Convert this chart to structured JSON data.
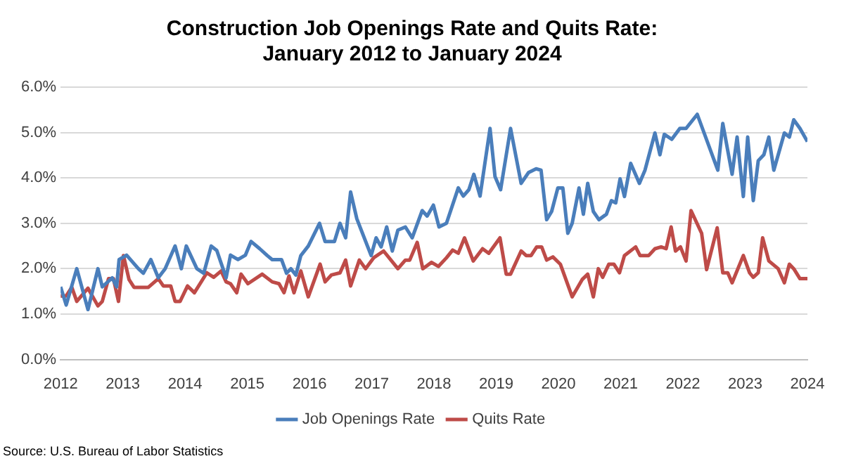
{
  "chart_data": {
    "type": "line",
    "title": "Construction Job Openings Rate and Quits Rate:\nJanuary 2012 to January 2024",
    "xlim": [
      2012,
      2024
    ],
    "xticks": [
      2012,
      2013,
      2014,
      2015,
      2016,
      2017,
      2018,
      2019,
      2020,
      2021,
      2022,
      2023,
      2024
    ],
    "ylim": [
      0,
      6
    ],
    "yticks": [
      {
        "value": 0,
        "label": "0.0%"
      },
      {
        "value": 1,
        "label": "1.0%"
      },
      {
        "value": 2,
        "label": "2.0%"
      },
      {
        "value": 3,
        "label": "3.0%"
      },
      {
        "value": 4,
        "label": "4.0%"
      },
      {
        "value": 5,
        "label": "5.0%"
      },
      {
        "value": 6,
        "label": "6.0%"
      }
    ],
    "grid": "y",
    "legend": "bottom",
    "marker": "none",
    "line_style": "solid",
    "annotations": [
      "Source: U.S. Bureau of Labor Statistics"
    ],
    "series": [
      {
        "name": "Job Openings Rate",
        "color": "#4a7ebb",
        "x": [
          2012.0,
          2012.09,
          2012.26,
          2012.44,
          2012.6,
          2012.67,
          2012.83,
          2012.9,
          2012.94,
          2013.06,
          2013.25,
          2013.33,
          2013.45,
          2013.57,
          2013.68,
          2013.84,
          2013.94,
          2014.02,
          2014.19,
          2014.3,
          2014.42,
          2014.51,
          2014.66,
          2014.73,
          2014.85,
          2014.97,
          2015.06,
          2015.2,
          2015.32,
          2015.4,
          2015.55,
          2015.63,
          2015.7,
          2015.78,
          2015.86,
          2015.98,
          2016.16,
          2016.25,
          2016.4,
          2016.49,
          2016.58,
          2016.66,
          2016.76,
          2016.99,
          2017.07,
          2017.15,
          2017.24,
          2017.33,
          2017.42,
          2017.54,
          2017.65,
          2017.81,
          2017.89,
          2017.99,
          2018.08,
          2018.2,
          2018.39,
          2018.47,
          2018.56,
          2018.64,
          2018.74,
          2018.9,
          2018.98,
          2019.07,
          2019.23,
          2019.4,
          2019.52,
          2019.64,
          2019.72,
          2019.81,
          2019.89,
          2019.99,
          2020.07,
          2020.15,
          2020.22,
          2020.33,
          2020.4,
          2020.47,
          2020.56,
          2020.65,
          2020.77,
          2020.85,
          2020.92,
          2020.99,
          2021.06,
          2021.16,
          2021.3,
          2021.39,
          2021.55,
          2021.63,
          2021.7,
          2021.82,
          2021.95,
          2022.05,
          2022.23,
          2022.56,
          2022.64,
          2022.79,
          2022.87,
          2022.97,
          2023.04,
          2023.13,
          2023.21,
          2023.3,
          2023.38,
          2023.46,
          2023.63,
          2023.71,
          2023.78,
          2023.88,
          2024.0
        ],
        "values": [
          1.6,
          1.2,
          2.0,
          1.1,
          2.0,
          1.6,
          1.8,
          1.6,
          2.2,
          2.3,
          2.0,
          1.9,
          2.2,
          1.8,
          2.0,
          2.5,
          2.0,
          2.5,
          2.0,
          1.9,
          2.5,
          2.4,
          1.8,
          2.3,
          2.2,
          2.3,
          2.6,
          2.44,
          2.29,
          2.2,
          2.2,
          1.9,
          2.0,
          1.86,
          2.29,
          2.5,
          3.0,
          2.6,
          2.6,
          3.0,
          2.68,
          3.69,
          3.1,
          2.29,
          2.68,
          2.48,
          2.92,
          2.39,
          2.85,
          2.92,
          2.68,
          3.28,
          3.16,
          3.4,
          2.92,
          3.0,
          3.78,
          3.6,
          3.74,
          4.08,
          3.6,
          5.09,
          4.03,
          3.74,
          5.09,
          3.88,
          4.12,
          4.2,
          4.17,
          3.08,
          3.26,
          3.78,
          3.78,
          2.78,
          3.0,
          3.78,
          3.2,
          3.88,
          3.26,
          3.08,
          3.2,
          3.5,
          3.45,
          3.98,
          3.59,
          4.32,
          3.88,
          4.17,
          4.99,
          4.51,
          4.96,
          4.85,
          5.09,
          5.09,
          5.4,
          4.17,
          5.2,
          4.08,
          4.9,
          3.59,
          4.9,
          3.5,
          4.38,
          4.51,
          4.9,
          4.17,
          4.99,
          4.9,
          5.28,
          5.09,
          4.8
        ]
      },
      {
        "name": "Quits Rate",
        "color": "#be4b48",
        "x": [
          2012.0,
          2012.09,
          2012.18,
          2012.26,
          2012.44,
          2012.6,
          2012.67,
          2012.77,
          2012.85,
          2012.93,
          2013.01,
          2013.1,
          2013.18,
          2013.41,
          2013.57,
          2013.65,
          2013.77,
          2013.84,
          2013.92,
          2014.04,
          2014.15,
          2014.35,
          2014.46,
          2014.58,
          2014.66,
          2014.73,
          2014.83,
          2014.9,
          2015.01,
          2015.24,
          2015.4,
          2015.51,
          2015.59,
          2015.67,
          2015.75,
          2015.86,
          2015.98,
          2016.17,
          2016.25,
          2016.35,
          2016.49,
          2016.58,
          2016.66,
          2016.8,
          2016.9,
          2017.03,
          2017.19,
          2017.42,
          2017.54,
          2017.61,
          2017.73,
          2017.82,
          2017.96,
          2018.07,
          2018.2,
          2018.3,
          2018.39,
          2018.49,
          2018.63,
          2018.78,
          2018.88,
          2019.06,
          2019.16,
          2019.23,
          2019.4,
          2019.48,
          2019.56,
          2019.65,
          2019.73,
          2019.81,
          2019.91,
          2020.03,
          2020.22,
          2020.38,
          2020.47,
          2020.56,
          2020.64,
          2020.71,
          2020.81,
          2020.89,
          2020.98,
          2021.06,
          2021.24,
          2021.31,
          2021.45,
          2021.55,
          2021.65,
          2021.73,
          2021.81,
          2021.88,
          2021.96,
          2022.05,
          2022.13,
          2022.3,
          2022.38,
          2022.55,
          2022.64,
          2022.72,
          2022.79,
          2022.97,
          2023.07,
          2023.13,
          2023.21,
          2023.28,
          2023.38,
          2023.53,
          2023.63,
          2023.71,
          2023.78,
          2023.88,
          2024.0
        ],
        "values": [
          1.4,
          1.4,
          1.59,
          1.28,
          1.57,
          1.18,
          1.28,
          1.78,
          1.78,
          1.28,
          2.29,
          1.76,
          1.59,
          1.59,
          1.78,
          1.62,
          1.62,
          1.28,
          1.28,
          1.62,
          1.47,
          1.91,
          1.81,
          1.95,
          1.71,
          1.67,
          1.47,
          1.88,
          1.67,
          1.88,
          1.71,
          1.67,
          1.47,
          1.84,
          1.47,
          1.95,
          1.38,
          2.1,
          1.71,
          1.86,
          1.91,
          2.19,
          1.62,
          2.19,
          2.0,
          2.24,
          2.39,
          2.0,
          2.19,
          2.19,
          2.58,
          2.0,
          2.14,
          2.05,
          2.24,
          2.41,
          2.34,
          2.68,
          2.17,
          2.44,
          2.34,
          2.68,
          1.88,
          1.88,
          2.39,
          2.29,
          2.29,
          2.48,
          2.48,
          2.19,
          2.26,
          2.1,
          1.38,
          1.76,
          1.88,
          1.38,
          2.0,
          1.81,
          2.1,
          2.1,
          1.91,
          2.29,
          2.48,
          2.29,
          2.29,
          2.44,
          2.48,
          2.44,
          2.92,
          2.39,
          2.48,
          2.17,
          3.28,
          2.78,
          1.98,
          2.9,
          1.91,
          1.91,
          1.69,
          2.29,
          1.91,
          1.81,
          1.91,
          2.68,
          2.17,
          2.0,
          1.69,
          2.1,
          2.0,
          1.78,
          1.78
        ]
      }
    ]
  }
}
